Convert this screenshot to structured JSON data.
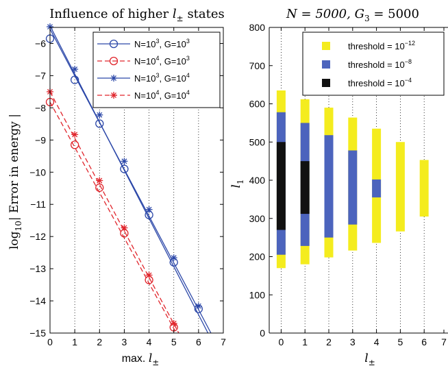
{
  "chart_data": [
    {
      "type": "line",
      "title_plain": "Influence of higher ",
      "title_var": "l",
      "title_sub": "±",
      "title_end": " states",
      "xlabel_plain": "max. ",
      "xlabel_var": "l",
      "xlabel_sub": "±",
      "ylabel_pre": "log",
      "ylabel_sub": "10",
      "ylabel_main": "| Error in energy |",
      "xlim": [
        0,
        7
      ],
      "ylim": [
        -15,
        -5.5
      ],
      "xticks": [
        "0",
        "1",
        "2",
        "3",
        "4",
        "5",
        "6",
        "7"
      ],
      "yticks": [
        "−6",
        "−7",
        "−8",
        "−9",
        "−10",
        "−11",
        "−12",
        "−13",
        "−14",
        "−15"
      ],
      "ytick_values": [
        -6,
        -7,
        -8,
        -9,
        -10,
        -11,
        -12,
        -13,
        -14,
        -15
      ],
      "grid": "vertical dotted",
      "legend_position": "top-right",
      "series": [
        {
          "legend_parts": [
            "N=10",
            "3",
            ", G=10",
            "3"
          ],
          "color": "#2b47a8",
          "dash": "solid",
          "marker": "circle",
          "x": [
            0,
            1,
            2,
            3,
            4,
            5,
            6
          ],
          "y": [
            -5.85,
            -7.13,
            -8.49,
            -9.9,
            -11.33,
            -12.8,
            -14.25
          ],
          "fit": [
            [
              0,
              -5.55
            ],
            [
              6.5,
              -15.0
            ]
          ]
        },
        {
          "legend_parts": [
            "N=10",
            "4",
            ", G=10",
            "3"
          ],
          "color": "#e0242b",
          "dash": "dashed",
          "marker": "circle",
          "x": [
            0,
            1,
            2,
            3,
            4,
            5
          ],
          "y": [
            -7.82,
            -9.15,
            -10.48,
            -11.9,
            -13.35,
            -14.82
          ],
          "fit": [
            [
              0,
              -7.82
            ],
            [
              5.1,
              -15.0
            ]
          ]
        },
        {
          "legend_parts": [
            "N=10",
            "3",
            ", G=10",
            "4"
          ],
          "color": "#2b47a8",
          "dash": "solid",
          "marker": "star",
          "x": [
            0,
            1,
            2,
            3,
            4,
            5,
            6
          ],
          "y": [
            -5.48,
            -6.8,
            -8.22,
            -9.66,
            -11.16,
            -12.66,
            -14.16
          ],
          "fit": [
            [
              0,
              -5.45
            ],
            [
              6.38,
              -15.0
            ]
          ]
        },
        {
          "legend_parts": [
            "N=10",
            "4",
            ", G=10",
            "4"
          ],
          "color": "#e0242b",
          "dash": "dashed",
          "marker": "star",
          "x": [
            0,
            1,
            2,
            3,
            4,
            5
          ],
          "y": [
            -7.5,
            -8.83,
            -10.26,
            -11.73,
            -13.2,
            -14.7
          ],
          "fit": [
            [
              0,
              -7.5
            ],
            [
              5.2,
              -15.0
            ]
          ]
        }
      ]
    },
    {
      "type": "bar",
      "title_plain": "N = 5000,  G",
      "title_sub": "3",
      "title_end": " = 5000",
      "xlabel_var": "l",
      "xlabel_sub": "±",
      "ylabel_var": "l",
      "ylabel_sub": "1",
      "xlim": [
        -0.5,
        7
      ],
      "ylim": [
        0,
        800
      ],
      "xticks": [
        "0",
        "1",
        "2",
        "3",
        "4",
        "5",
        "6",
        "7"
      ],
      "yticks": [
        "0",
        "100",
        "200",
        "300",
        "400",
        "500",
        "600",
        "700",
        "800"
      ],
      "ytick_values": [
        0,
        100,
        200,
        300,
        400,
        500,
        600,
        700,
        800
      ],
      "grid": "vertical dotted",
      "legend_position": "top-right",
      "legend": [
        {
          "label_pre": "threshold = 10",
          "label_exp": "−12",
          "color": "#f4ec1e"
        },
        {
          "label_pre": "threshold = 10",
          "label_exp": "−8",
          "color": "#4c64bd"
        },
        {
          "label_pre": "threshold = 10",
          "label_exp": "−4",
          "color": "#111111"
        }
      ],
      "ranges": [
        {
          "x": 0,
          "yellow": [
            170,
            635
          ],
          "blue": [
            205,
            578
          ],
          "black": [
            270,
            500
          ]
        },
        {
          "x": 1,
          "yellow": [
            180,
            612
          ],
          "blue": [
            228,
            550
          ],
          "black": [
            312,
            450
          ]
        },
        {
          "x": 2,
          "yellow": [
            198,
            590
          ],
          "blue": [
            250,
            518
          ]
        },
        {
          "x": 3,
          "yellow": [
            216,
            564
          ],
          "blue": [
            284,
            478
          ]
        },
        {
          "x": 4,
          "yellow": [
            236,
            535
          ],
          "blue": [
            355,
            402
          ]
        },
        {
          "x": 5,
          "yellow": [
            266,
            500
          ]
        },
        {
          "x": 6,
          "yellow": [
            305,
            453
          ]
        }
      ]
    }
  ]
}
